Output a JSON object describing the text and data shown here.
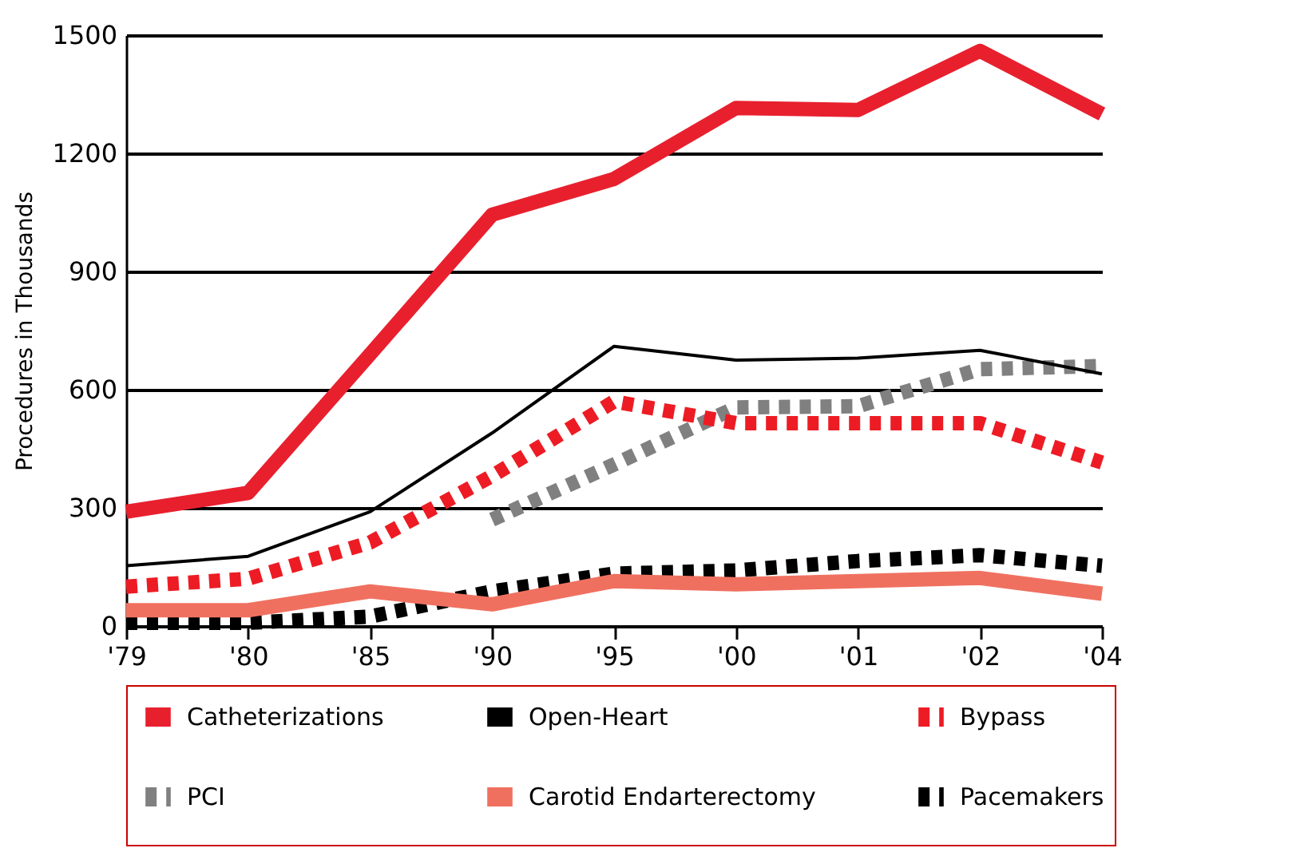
{
  "chart_data": {
    "type": "line",
    "ylabel": "Procedures in Thousands",
    "categories": [
      "'79",
      "'80",
      "'85",
      "'90",
      "'95",
      "'00",
      "'01",
      "'02",
      "'04"
    ],
    "ylim": [
      0,
      1500
    ],
    "yticks": [
      0,
      300,
      600,
      900,
      1200,
      1500
    ],
    "grid": "y",
    "legend": "bottom",
    "series": [
      {
        "name": "Catheterizations",
        "color": "#e8202e",
        "values": [
          290,
          338,
          690,
          1044,
          1135,
          1315,
          1310,
          1460,
          1300
        ]
      },
      {
        "name": "Open-Heart",
        "color": "#000000",
        "values": [
          153,
          177,
          290,
          490,
          710,
          675,
          680,
          700,
          640
        ]
      },
      {
        "name": "Bypass",
        "color": "#ed1c24",
        "line_style": "dashed",
        "values": [
          100,
          120,
          212,
          381,
          570,
          515,
          515,
          515,
          415
        ]
      },
      {
        "name": "PCI",
        "color": "#808080",
        "line_style": "dashed",
        "values": [
          null,
          null,
          null,
          270,
          410,
          555,
          558,
          652,
          660
        ]
      },
      {
        "name": "Carotid Endarterectomy",
        "color": "#f07060",
        "values": [
          40,
          40,
          88,
          55,
          114,
          106,
          114,
          122,
          82
        ]
      },
      {
        "name": "Pacemakers",
        "color": "#000000",
        "line_style": "dashed",
        "values": [
          8,
          8,
          24,
          88,
          133,
          141,
          165,
          180,
          153
        ]
      }
    ]
  }
}
